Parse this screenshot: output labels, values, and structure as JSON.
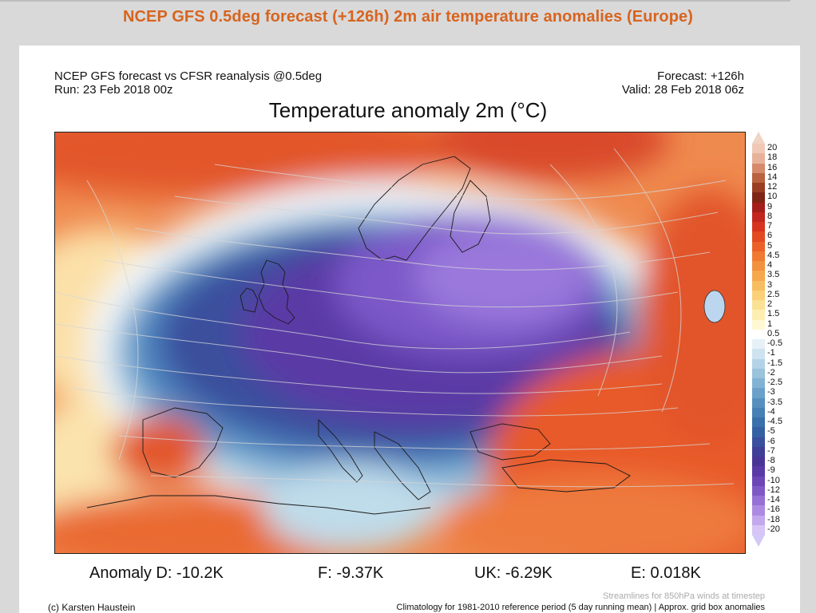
{
  "page": {
    "title": "NCEP GFS 0.5deg forecast (+126h) 2m air temperature anomalies (Europe)"
  },
  "header": {
    "left_line1": "NCEP GFS forecast vs CFSR reanalysis @0.5deg",
    "left_line2": "Run: 23 Feb 2018 00z",
    "right_line1": "Forecast: +126h",
    "right_line2": "Valid: 28 Feb 2018 06z"
  },
  "map": {
    "title": "Temperature anomaly 2m (°C)"
  },
  "colorbar": {
    "labels": [
      "20",
      "18",
      "16",
      "14",
      "12",
      "10",
      "9",
      "8",
      "7",
      "6",
      "5",
      "4.5",
      "4",
      "3.5",
      "3",
      "2.5",
      "2",
      "1.5",
      "1",
      "0.5",
      "-0.5",
      "-1",
      "-1.5",
      "-2",
      "-2.5",
      "-3",
      "-3.5",
      "-4",
      "-4.5",
      "-5",
      "-6",
      "-7",
      "-8",
      "-9",
      "-10",
      "-12",
      "-14",
      "-16",
      "-18",
      "-20"
    ],
    "colors": [
      "#f0c9b6",
      "#e8b29a",
      "#d68a6b",
      "#b8623f",
      "#9a3d22",
      "#7f2516",
      "#a41e1c",
      "#c2261f",
      "#d7341f",
      "#e34a22",
      "#ec6128",
      "#f07a32",
      "#f3913e",
      "#f6a84d",
      "#f8bd61",
      "#fad078",
      "#fbe193",
      "#fdeeb1",
      "#fff8d3",
      "#ffffff",
      "#e6f1f7",
      "#cde3ef",
      "#b3d3e6",
      "#9ac3dc",
      "#82b2d3",
      "#6ba1c9",
      "#5790bf",
      "#4680b5",
      "#3a70ab",
      "#3560a3",
      "#3a4f9d",
      "#3f3f98",
      "#4a3597",
      "#5a3aa6",
      "#6c45b6",
      "#8058c6",
      "#9670d5",
      "#ad8be2",
      "#c4a8ed",
      "#d6c5f5"
    ]
  },
  "stats": {
    "d": "Anomaly D: -10.2K",
    "f": "F: -9.37K",
    "uk": "UK: -6.29K",
    "e": "E: 0.018K"
  },
  "footer": {
    "credit": "(c) Karsten Haustein",
    "streamlines": "Streamlines for 850hPa winds at timestep",
    "climatology": "Climatology for 1981-2010 reference period (5 day running mean) | Approx. grid box anomalies"
  }
}
